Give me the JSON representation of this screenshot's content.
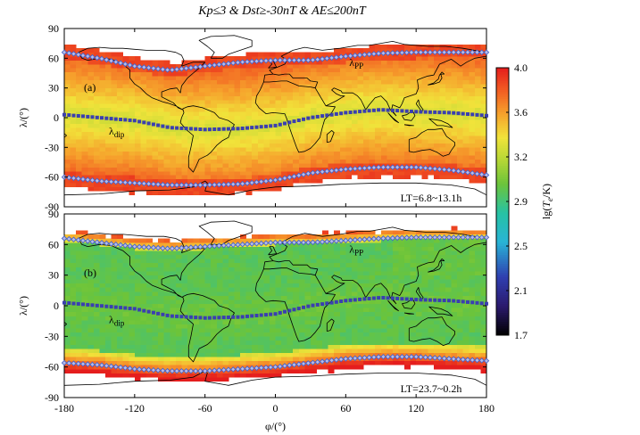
{
  "chart_data": [
    {
      "type": "heatmap",
      "title": "Kp≤3 & Dst≥-30nT & AE≤200nT",
      "panel_label": "(a)",
      "local_time_label": "LT=6.8~13.1h",
      "ylabel": "λ/(°)",
      "xlim": [
        -180,
        180
      ],
      "ylim": [
        -90,
        90
      ],
      "y_ticks": [
        90,
        60,
        30,
        0,
        -30,
        -60,
        -90
      ],
      "grid": false,
      "series": [
        {
          "name": "λdip",
          "label_main": "λ",
          "label_sub": "dip",
          "x": [
            -180,
            -150,
            -120,
            -90,
            -60,
            -30,
            0,
            30,
            60,
            90,
            120,
            150,
            180
          ],
          "y": [
            3,
            0,
            -3,
            -10,
            -12,
            -11,
            -8,
            0,
            5,
            8,
            6,
            5,
            2
          ]
        },
        {
          "name": "λpp",
          "label_main": "λ",
          "label_sub": "PP",
          "x": [
            -180,
            -150,
            -120,
            -90,
            -60,
            -30,
            0,
            30,
            60,
            90,
            120,
            150,
            180
          ],
          "y": [
            66,
            60,
            52,
            48,
            52,
            56,
            58,
            58,
            62,
            65,
            66,
            66,
            66
          ]
        },
        {
          "name": "southern boundary",
          "x": [
            -180,
            -150,
            -120,
            -90,
            -60,
            -30,
            0,
            30,
            60,
            90,
            120,
            150,
            180
          ],
          "y": [
            -60,
            -64,
            -66,
            -68,
            -68,
            -67,
            -63,
            -56,
            -52,
            -50,
            -50,
            -53,
            -58
          ]
        }
      ],
      "background_value": 3.45
    },
    {
      "type": "heatmap",
      "panel_label": "(b)",
      "local_time_label": "LT=23.7~0.2h",
      "xlabel": "φ/(°)",
      "ylabel": "λ/(°)",
      "xlim": [
        -180,
        180
      ],
      "ylim": [
        -90,
        90
      ],
      "x_ticks": [
        -180,
        -120,
        -60,
        0,
        60,
        120,
        180
      ],
      "y_ticks": [
        90,
        60,
        30,
        0,
        -30,
        -60,
        -90
      ],
      "grid": false,
      "series": [
        {
          "name": "λdip",
          "label_main": "λ",
          "label_sub": "dip",
          "x": [
            -180,
            -150,
            -120,
            -90,
            -60,
            -30,
            0,
            30,
            60,
            90,
            120,
            150,
            180
          ],
          "y": [
            3,
            0,
            -3,
            -10,
            -12,
            -11,
            -8,
            0,
            5,
            8,
            6,
            5,
            2
          ]
        },
        {
          "name": "λpp",
          "label_main": "λ",
          "label_sub": "PP",
          "x": [
            -180,
            -150,
            -120,
            -90,
            -60,
            -30,
            0,
            30,
            60,
            90,
            120,
            150,
            180
          ],
          "y": [
            66,
            62,
            58,
            56,
            58,
            60,
            62,
            62,
            64,
            66,
            67,
            67,
            67
          ]
        },
        {
          "name": "southern boundary",
          "x": [
            -180,
            -150,
            -120,
            -90,
            -60,
            -30,
            0,
            30,
            60,
            90,
            120,
            150,
            180
          ],
          "y": [
            -56,
            -58,
            -62,
            -64,
            -64,
            -62,
            -60,
            -56,
            -52,
            -50,
            -50,
            -52,
            -54
          ]
        }
      ],
      "background_value": 3.0
    }
  ],
  "colorbar": {
    "label": "lg(Te/K)",
    "label_prefix": "lg(",
    "label_main": "T",
    "label_sub": "e",
    "label_suffix": "/K)",
    "ticks": [
      4.0,
      3.6,
      3.2,
      2.9,
      2.5,
      2.1,
      1.7
    ],
    "tick_labels": [
      "4.0",
      "3.6",
      "3.2",
      "2.9",
      "2.5",
      "2.1",
      "1.7"
    ],
    "range": [
      1.7,
      4.0
    ],
    "stops": [
      {
        "v": 1.7,
        "color": "#000000"
      },
      {
        "v": 1.95,
        "color": "#2b1a6e"
      },
      {
        "v": 2.2,
        "color": "#2f3fb0"
      },
      {
        "v": 2.5,
        "color": "#28b4d6"
      },
      {
        "v": 2.75,
        "color": "#27c2a4"
      },
      {
        "v": 3.0,
        "color": "#6cc43a"
      },
      {
        "v": 3.2,
        "color": "#b4d636"
      },
      {
        "v": 3.4,
        "color": "#f1e33a"
      },
      {
        "v": 3.6,
        "color": "#f6a22c"
      },
      {
        "v": 3.8,
        "color": "#f25e22"
      },
      {
        "v": 4.0,
        "color": "#e51d1d"
      }
    ]
  },
  "marker_colors": {
    "dip": "#3a3fb0",
    "pp": "#4a63c8",
    "pp_fill": "#b7bde8"
  }
}
